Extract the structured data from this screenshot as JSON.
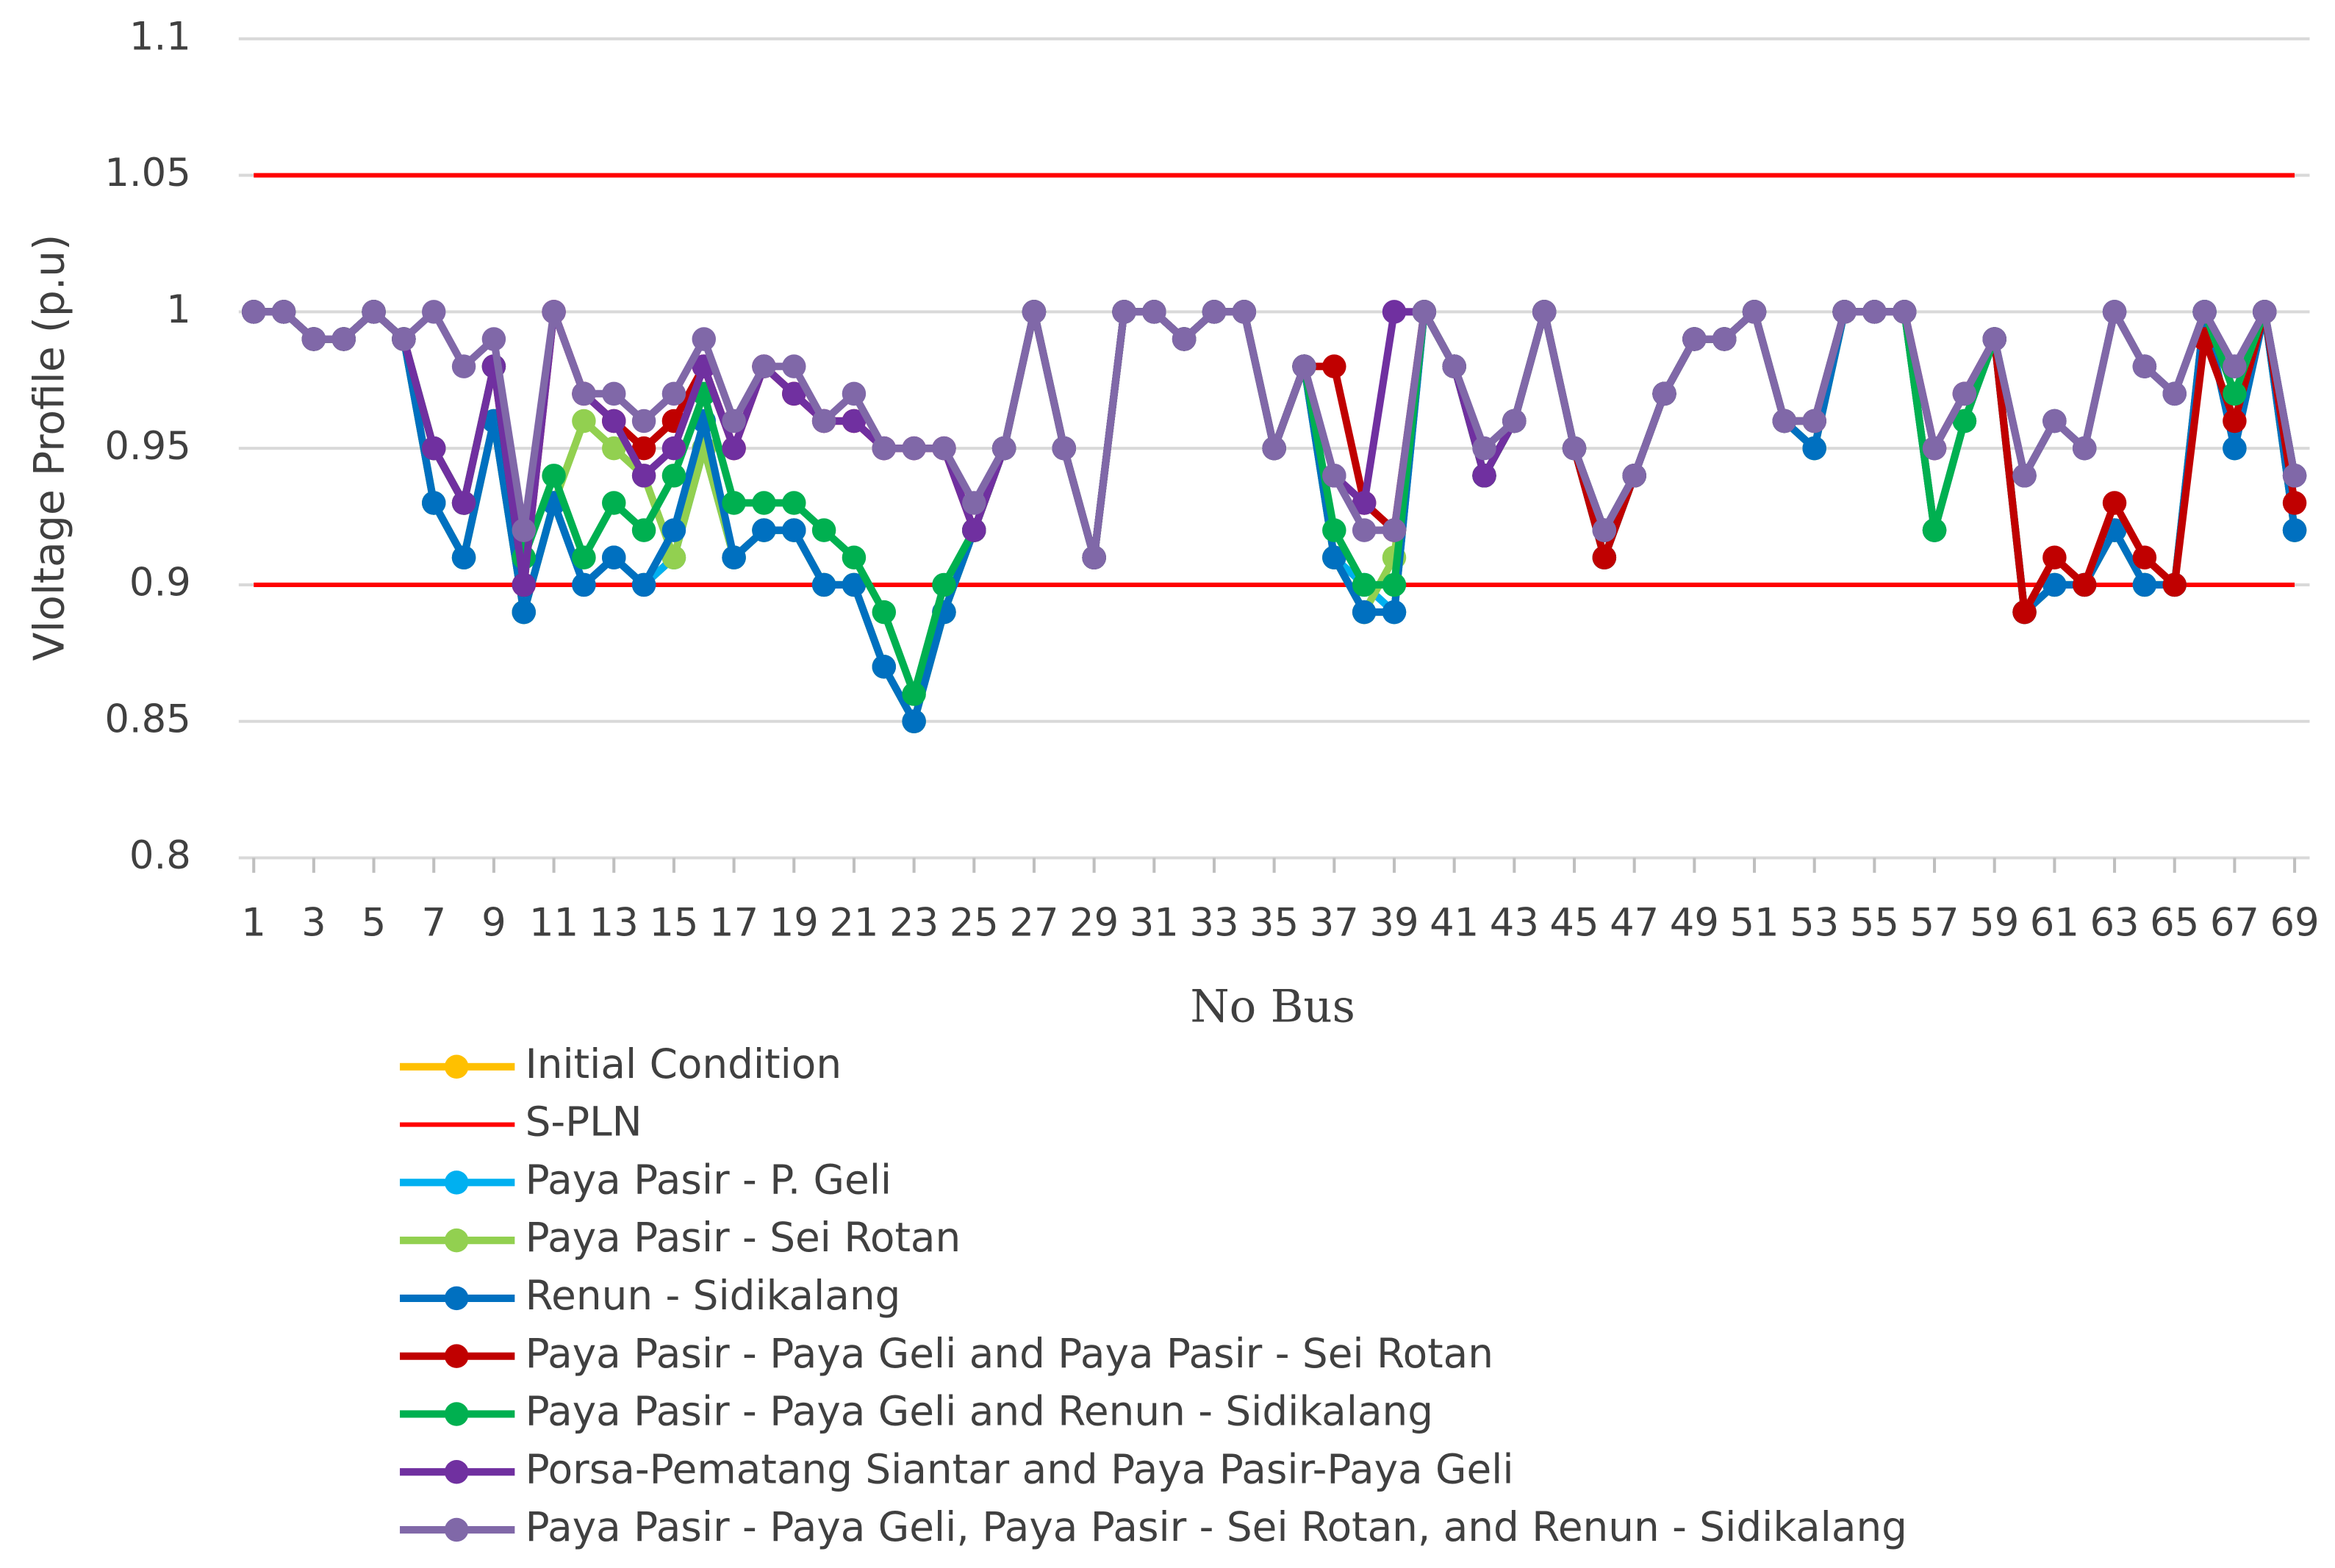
{
  "chart_data": {
    "type": "line",
    "x_label": "No Bus",
    "y_label": "Vloltage Profile (p.u)",
    "x": [
      1,
      2,
      3,
      4,
      5,
      6,
      7,
      8,
      9,
      10,
      11,
      12,
      13,
      14,
      15,
      16,
      17,
      18,
      19,
      20,
      21,
      22,
      23,
      24,
      25,
      26,
      27,
      28,
      29,
      30,
      31,
      32,
      33,
      34,
      35,
      36,
      37,
      38,
      39,
      40,
      41,
      42,
      43,
      44,
      45,
      46,
      47,
      48,
      49,
      50,
      51,
      52,
      53,
      54,
      55,
      56,
      57,
      58,
      59,
      60,
      61,
      62,
      63,
      64,
      65,
      66,
      67,
      68,
      69
    ],
    "xlim": [
      0.5,
      69.5
    ],
    "xticks": [
      1,
      3,
      5,
      7,
      9,
      11,
      13,
      15,
      17,
      19,
      21,
      23,
      25,
      27,
      29,
      31,
      33,
      35,
      37,
      39,
      41,
      43,
      45,
      47,
      49,
      51,
      53,
      55,
      57,
      59,
      61,
      63,
      65,
      67,
      69
    ],
    "ylim": [
      0.8,
      1.1
    ],
    "yticks": [
      0.8,
      0.85,
      0.9,
      0.95,
      1,
      1.05,
      1.1
    ],
    "grid": true,
    "legend": "bottom",
    "series": [
      {
        "name": "Initial Condition",
        "color": "#ffc000",
        "values": [
          1,
          1,
          0.99,
          0.99,
          1,
          0.99,
          0.93,
          0.91,
          0.96,
          0.89,
          0.93,
          0.9,
          0.91,
          0.9,
          0.91,
          0.95,
          0.91,
          0.92,
          0.92,
          0.9,
          0.9,
          0.87,
          0.85,
          0.89,
          0.92,
          0.95,
          1,
          0.95,
          0.91,
          1,
          1,
          0.99,
          1,
          1,
          0.95,
          0.98,
          0.91,
          0.89,
          0.89,
          1,
          0.98,
          0.94,
          0.96,
          1,
          0.95,
          0.91,
          0.94,
          0.97,
          0.99,
          0.99,
          1,
          0.96,
          0.95,
          1,
          1,
          1,
          0.92,
          0.96,
          0.99,
          0.89,
          0.9,
          0.9,
          0.92,
          0.9,
          0.9,
          1,
          0.95,
          1,
          0.92
        ]
      },
      {
        "name": "S-PLN",
        "color": "#ff0000",
        "lines": [
          0.9,
          1.05
        ]
      },
      {
        "name": "Paya Pasir - P. Geli",
        "color": "#00b0f0",
        "values": [
          1,
          1,
          0.99,
          0.99,
          1,
          0.99,
          0.93,
          0.91,
          0.96,
          0.89,
          0.93,
          0.9,
          0.91,
          0.9,
          0.91,
          0.95,
          0.91,
          0.92,
          0.92,
          0.9,
          0.9,
          0.87,
          0.85,
          0.89,
          0.92,
          0.95,
          1,
          0.95,
          0.91,
          1,
          1,
          0.99,
          1,
          1,
          0.95,
          0.98,
          0.91,
          0.9,
          0.89,
          1,
          0.98,
          0.94,
          0.96,
          1,
          0.95,
          0.91,
          0.94,
          0.97,
          0.99,
          0.99,
          1,
          0.96,
          0.95,
          1,
          1,
          1,
          0.92,
          0.96,
          0.99,
          0.89,
          0.9,
          0.9,
          0.92,
          0.9,
          0.9,
          1,
          0.95,
          1,
          0.92
        ]
      },
      {
        "name": "Paya Pasir - Sei Rotan",
        "color": "#92d050",
        "values": [
          1,
          1,
          0.99,
          0.99,
          1,
          0.99,
          0.93,
          0.91,
          0.96,
          0.89,
          0.93,
          0.96,
          0.95,
          0.94,
          0.91,
          0.95,
          0.91,
          0.92,
          0.92,
          0.9,
          0.9,
          0.87,
          0.85,
          0.89,
          0.92,
          0.95,
          1,
          0.95,
          0.91,
          1,
          1,
          0.99,
          1,
          1,
          0.95,
          0.98,
          0.91,
          0.89,
          0.91,
          1,
          0.98,
          0.94,
          0.96,
          1,
          0.95,
          0.91,
          0.94,
          0.97,
          0.99,
          0.99,
          1,
          0.96,
          0.95,
          1,
          1,
          1,
          0.92,
          0.96,
          0.99,
          0.89,
          0.9,
          0.9,
          0.92,
          0.9,
          0.9,
          1,
          0.97,
          1,
          0.92
        ]
      },
      {
        "name": "Renun - Sidikalang",
        "color": "#0070c0",
        "values": [
          1,
          1,
          0.99,
          0.99,
          1,
          0.99,
          0.93,
          0.91,
          0.96,
          0.89,
          0.93,
          0.9,
          0.91,
          0.9,
          0.92,
          0.96,
          0.91,
          0.92,
          0.92,
          0.9,
          0.9,
          0.87,
          0.85,
          0.89,
          0.92,
          0.95,
          1,
          0.95,
          0.91,
          1,
          1,
          0.99,
          1,
          1,
          0.95,
          0.98,
          0.91,
          0.89,
          0.89,
          1,
          0.98,
          0.94,
          0.96,
          1,
          0.95,
          0.91,
          0.94,
          0.97,
          0.99,
          0.99,
          1,
          0.96,
          0.95,
          1,
          1,
          1,
          0.92,
          0.96,
          0.99,
          0.89,
          0.9,
          0.9,
          0.92,
          0.9,
          0.9,
          1,
          0.95,
          1,
          0.92
        ]
      },
      {
        "name": "Paya Pasir - Paya Geli and Paya Pasir - Sei Rotan",
        "color": "#c00000",
        "values": [
          1,
          1,
          0.99,
          0.99,
          1,
          0.99,
          0.95,
          0.93,
          0.98,
          0.9,
          1,
          0.97,
          0.96,
          0.95,
          0.96,
          0.98,
          0.95,
          0.98,
          0.97,
          0.96,
          0.96,
          0.95,
          0.95,
          0.95,
          0.92,
          0.95,
          1,
          0.95,
          0.91,
          1,
          1,
          0.99,
          1,
          1,
          0.95,
          0.98,
          0.98,
          0.93,
          0.92,
          1,
          0.98,
          0.94,
          0.96,
          1,
          0.95,
          0.91,
          0.94,
          0.97,
          0.99,
          0.99,
          1,
          0.96,
          0.96,
          1,
          1,
          1,
          0.95,
          0.97,
          0.99,
          0.89,
          0.91,
          0.9,
          0.93,
          0.91,
          0.9,
          0.99,
          0.96,
          1,
          0.93
        ]
      },
      {
        "name": "Paya Pasir - Paya Geli and Renun - Sidikalang",
        "color": "#00b050",
        "values": [
          1,
          1,
          0.99,
          0.99,
          1,
          0.99,
          0.95,
          0.93,
          0.98,
          0.91,
          0.94,
          0.91,
          0.93,
          0.92,
          0.94,
          0.97,
          0.93,
          0.93,
          0.93,
          0.92,
          0.91,
          0.89,
          0.86,
          0.9,
          0.92,
          0.95,
          1,
          0.95,
          0.91,
          1,
          1,
          0.99,
          1,
          1,
          0.95,
          0.98,
          0.92,
          0.9,
          0.9,
          1,
          0.98,
          0.94,
          0.96,
          1,
          0.95,
          0.92,
          0.94,
          0.97,
          0.99,
          0.99,
          1,
          0.96,
          0.96,
          1,
          1,
          1,
          0.92,
          0.96,
          0.99,
          0.94,
          0.96,
          0.95,
          1,
          0.98,
          0.97,
          1,
          0.97,
          1,
          0.94
        ]
      },
      {
        "name": "Porsa-Pematang Siantar and Paya Pasir-Paya Geli",
        "color": "#7030a0",
        "values": [
          1,
          1,
          0.99,
          0.99,
          1,
          0.99,
          0.95,
          0.93,
          0.98,
          0.9,
          1,
          0.97,
          0.96,
          0.94,
          0.95,
          0.98,
          0.95,
          0.98,
          0.97,
          0.96,
          0.96,
          0.95,
          0.95,
          0.95,
          0.92,
          0.95,
          1,
          0.95,
          0.91,
          1,
          1,
          0.99,
          1,
          1,
          0.95,
          0.98,
          0.94,
          0.93,
          1,
          1,
          0.98,
          0.94,
          0.96,
          1,
          0.95,
          0.92,
          0.94,
          0.97,
          0.99,
          0.99,
          1,
          0.96,
          0.96,
          1,
          1,
          1,
          0.95,
          0.97,
          0.99,
          0.94,
          0.96,
          0.95,
          1,
          0.98,
          0.97,
          1,
          0.98,
          1,
          0.94
        ]
      },
      {
        "name": "Paya Pasir - Paya Geli, Paya Pasir - Sei Rotan, and Renun - Sidikalang",
        "color": "#8068a8",
        "values": [
          1,
          1,
          0.99,
          0.99,
          1,
          0.99,
          1,
          0.98,
          0.99,
          0.92,
          1,
          0.97,
          0.97,
          0.96,
          0.97,
          0.99,
          0.96,
          0.98,
          0.98,
          0.96,
          0.97,
          0.95,
          0.95,
          0.95,
          0.93,
          0.95,
          1,
          0.95,
          0.91,
          1,
          1,
          0.99,
          1,
          1,
          0.95,
          0.98,
          0.94,
          0.92,
          0.92,
          1,
          0.98,
          0.95,
          0.96,
          1,
          0.95,
          0.92,
          0.94,
          0.97,
          0.99,
          0.99,
          1,
          0.96,
          0.96,
          1,
          1,
          1,
          0.95,
          0.97,
          0.99,
          0.94,
          0.96,
          0.95,
          1,
          0.98,
          0.97,
          1,
          0.98,
          1,
          0.94
        ]
      }
    ]
  }
}
